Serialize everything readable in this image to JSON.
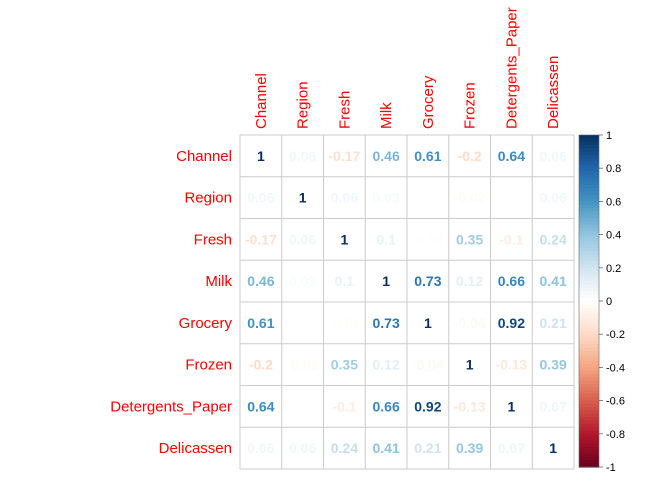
{
  "chart_data": {
    "type": "heatmap",
    "variables": [
      "Channel",
      "Region",
      "Fresh",
      "Milk",
      "Grocery",
      "Frozen",
      "Detergents_Paper",
      "Delicassen"
    ],
    "matrix": [
      [
        1,
        0.06,
        -0.17,
        0.46,
        0.61,
        -0.2,
        0.64,
        0.06
      ],
      [
        0.06,
        1,
        0.06,
        0.03,
        0.01,
        -0.02,
        0.0,
        0.06
      ],
      [
        -0.17,
        0.06,
        1,
        0.1,
        -0.01,
        0.35,
        -0.1,
        0.24
      ],
      [
        0.46,
        0.03,
        0.1,
        1,
        0.73,
        0.12,
        0.66,
        0.41
      ],
      [
        0.61,
        0.01,
        -0.01,
        0.73,
        1,
        -0.04,
        0.92,
        0.21
      ],
      [
        -0.2,
        -0.02,
        0.35,
        0.12,
        -0.04,
        1,
        -0.13,
        0.39
      ],
      [
        0.64,
        0.0,
        -0.1,
        0.66,
        0.92,
        -0.13,
        1,
        0.07
      ],
      [
        0.06,
        0.06,
        0.24,
        0.41,
        0.21,
        0.39,
        0.07,
        1
      ]
    ],
    "cell_labels": [
      [
        "1",
        "0.06",
        "-0.17",
        "0.46",
        "0.61",
        "-0.2",
        "0.64",
        "0.06"
      ],
      [
        "0.06",
        "1",
        "0.06",
        "0.03",
        "",
        "-0.02",
        "",
        "0.06"
      ],
      [
        "-0.17",
        "0.06",
        "1",
        "0.1",
        "-0.01",
        "0.35",
        "-0.1",
        "0.24"
      ],
      [
        "0.46",
        "0.03",
        "0.1",
        "1",
        "0.73",
        "0.12",
        "0.66",
        "0.41"
      ],
      [
        "0.61",
        "",
        "-0.01",
        "0.73",
        "1",
        "-0.04",
        "0.92",
        "0.21"
      ],
      [
        "-0.2",
        "-0.02",
        "0.35",
        "0.12",
        "-0.04",
        "1",
        "-0.13",
        "0.39"
      ],
      [
        "0.64",
        "",
        "-0.1",
        "0.66",
        "0.92",
        "-0.13",
        "1",
        "0.07"
      ],
      [
        "0.06",
        "0.06",
        "0.24",
        "0.41",
        "0.21",
        "0.39",
        "0.07",
        "1"
      ]
    ],
    "colorbar": {
      "min": -1,
      "max": 1,
      "ticks": [
        "1",
        "0.8",
        "0.6",
        "0.4",
        "0.2",
        "0",
        "-0.2",
        "-0.4",
        "-0.6",
        "-0.8",
        "-1"
      ]
    },
    "colors": {
      "label": "#ff0000",
      "grid": "#cccccc",
      "negative_end": "#67001f",
      "positive_end": "#053061",
      "midpoint": "#ffffff"
    }
  }
}
